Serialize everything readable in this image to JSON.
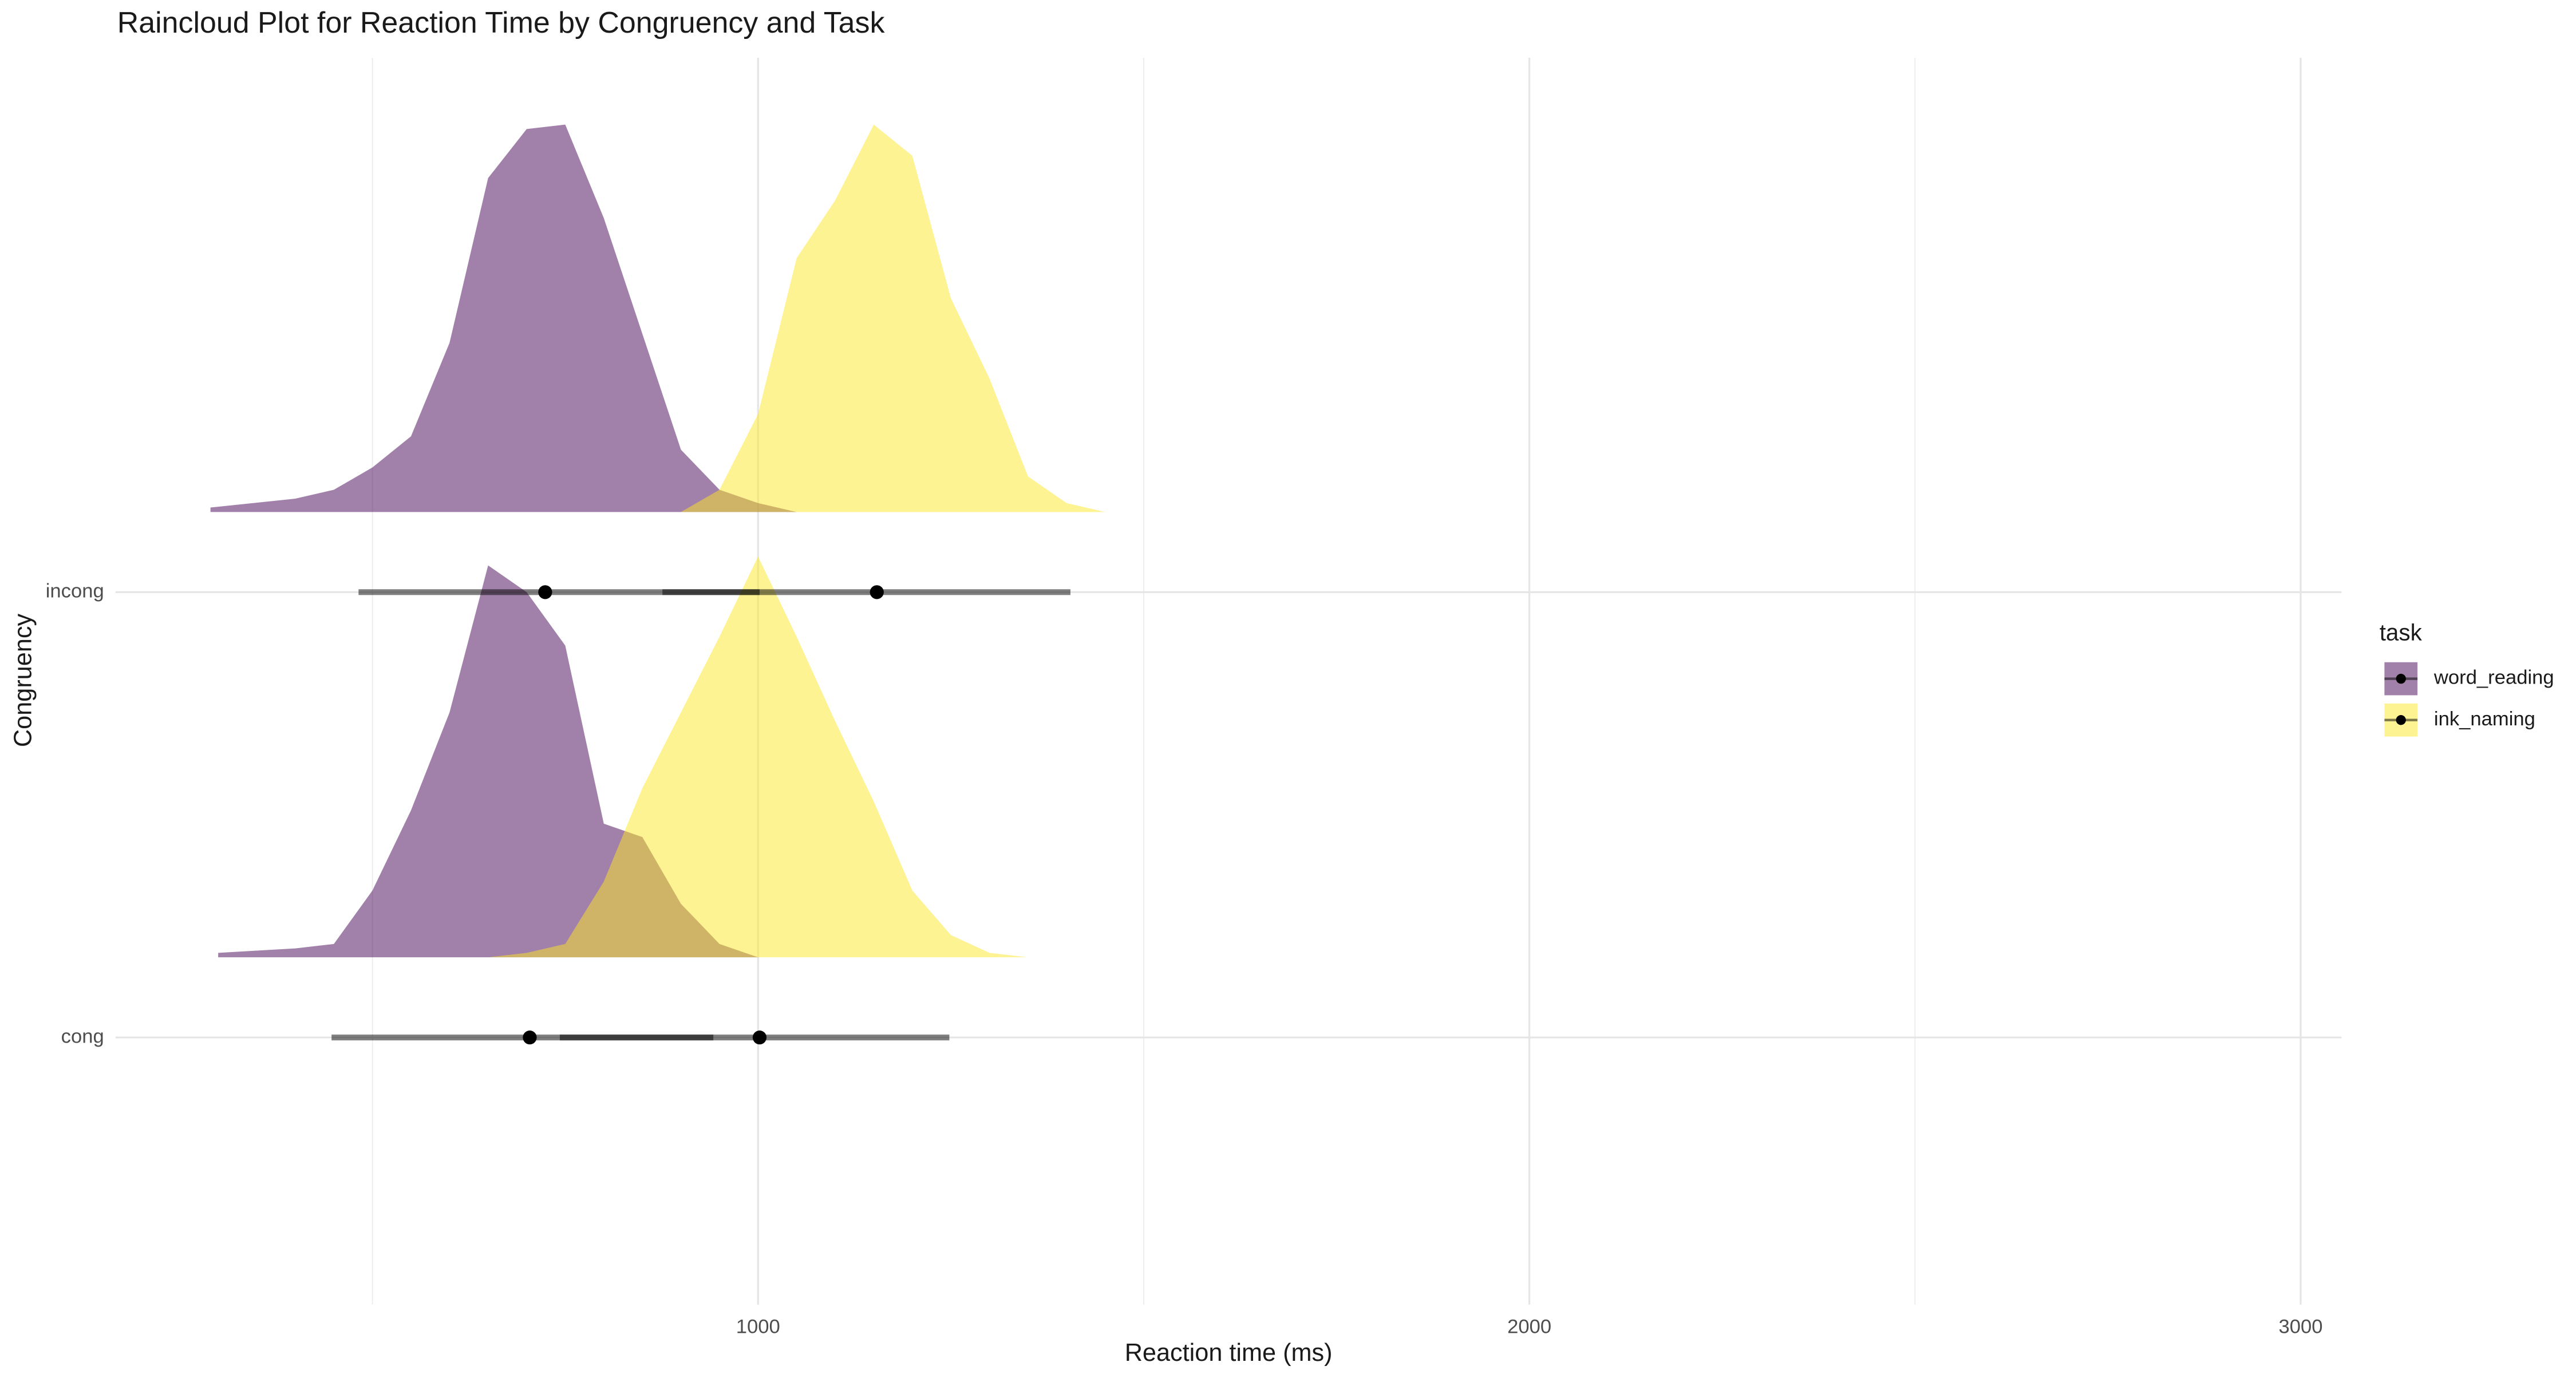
{
  "chart_data": {
    "type": "raincloud",
    "title": "Raincloud Plot for Reaction Time by Congruency and Task",
    "x_label": "Reaction time (ms)",
    "y_label": "Congruency",
    "legend_title": "task",
    "legend_position": "right",
    "grid": true,
    "categories": [
      "cong",
      "incong"
    ],
    "xlim": [
      167,
      3053
    ],
    "xticks": [
      1000,
      2000,
      3000
    ],
    "xminor_ticks": [
      500,
      1500,
      2500
    ],
    "ylim": [
      0.4,
      3.2
    ],
    "series": [
      {
        "name": "word_reading",
        "color": "#440154",
        "density": [
          {
            "x": [
              300,
              400,
              450,
              500,
              550,
              600,
              650,
              700,
              750,
              800,
              850,
              900,
              950,
              1000
            ],
            "values": [
              0.01,
              0.02,
              0.03,
              0.15,
              0.33,
              0.55,
              0.88,
              0.82,
              0.7,
              0.3,
              0.27,
              0.12,
              0.03,
              0
            ]
          },
          {
            "x": [
              290,
              400,
              450,
              500,
              550,
              600,
              650,
              700,
              750,
              800,
              850,
              900,
              950,
              1000,
              1050
            ],
            "values": [
              0.01,
              0.03,
              0.05,
              0.1,
              0.17,
              0.38,
              0.75,
              0.86,
              0.87,
              0.66,
              0.4,
              0.14,
              0.05,
              0.02,
              0
            ]
          }
        ],
        "medians": [
          704,
          724
        ],
        "interval_low": [
          447,
          482
        ],
        "interval_high": [
          942,
          1002
        ]
      },
      {
        "name": "ink_naming",
        "color": "#fde725",
        "density": [
          {
            "x": [
              650,
              700,
              750,
              800,
              850,
              900,
              950,
              1000,
              1050,
              1100,
              1150,
              1200,
              1250,
              1300,
              1350
            ],
            "values": [
              0,
              0.01,
              0.03,
              0.17,
              0.38,
              0.55,
              0.72,
              0.9,
              0.72,
              0.53,
              0.35,
              0.15,
              0.05,
              0.01,
              0
            ]
          },
          {
            "x": [
              900,
              950,
              1000,
              1050,
              1100,
              1150,
              1200,
              1250,
              1300,
              1350,
              1400,
              1450
            ],
            "values": [
              0,
              0.05,
              0.22,
              0.57,
              0.7,
              0.87,
              0.8,
              0.48,
              0.3,
              0.08,
              0.02,
              0
            ]
          }
        ],
        "medians": [
          1002,
          1154
        ],
        "interval_low": [
          743,
          876
        ],
        "interval_high": [
          1248,
          1405
        ]
      }
    ]
  }
}
